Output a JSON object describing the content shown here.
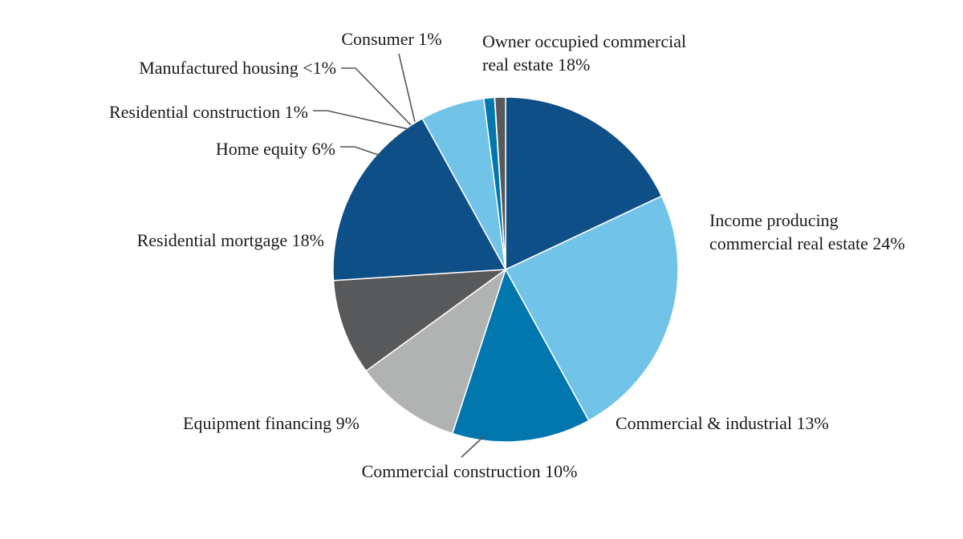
{
  "chart_data": {
    "type": "pie",
    "title": "",
    "start_angle_deg": 0,
    "direction": "clockwise",
    "slices": [
      {
        "lines": [
          "Owner occupied commercial",
          "real estate 18%"
        ],
        "value": 18,
        "color": "#0f4f87"
      },
      {
        "lines": [
          "Income producing",
          "commercial real estate 24%"
        ],
        "value": 24,
        "color": "#72c3e8"
      },
      {
        "lines": [
          "Commercial & industrial 13%"
        ],
        "value": 13,
        "color": "#0277ad"
      },
      {
        "lines": [
          "Commercial construction 10%"
        ],
        "value": 10,
        "color": "#b1b3b3"
      },
      {
        "lines": [
          "Equipment financing 9%"
        ],
        "value": 9,
        "color": "#58595b"
      },
      {
        "lines": [
          "Residential mortgage 18%"
        ],
        "value": 18,
        "color": "#0f4f87"
      },
      {
        "lines": [
          "Home equity 6%"
        ],
        "value": 6,
        "color": "#72c3e8"
      },
      {
        "lines": [
          "Residential construction 1%"
        ],
        "value": 1,
        "color": "#0277ad"
      },
      {
        "lines": [
          "Manufactured housing <1%"
        ],
        "value": 0.02,
        "color": "#b1b3b3"
      },
      {
        "lines": [
          "Consumer 1%"
        ],
        "value": 1,
        "color": "#58595b"
      }
    ]
  }
}
